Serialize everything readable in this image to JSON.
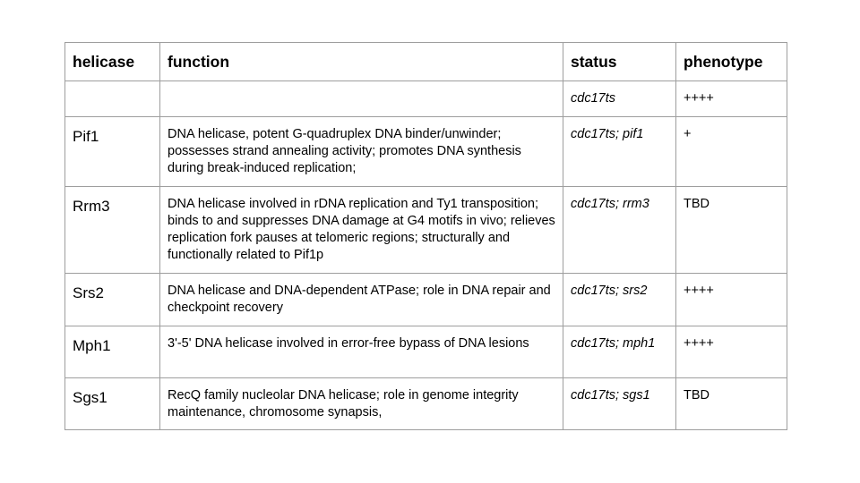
{
  "table": {
    "headers": {
      "helicase": "helicase",
      "function": "function",
      "status": "status",
      "phenotype": "phenotype"
    },
    "control_row": {
      "helicase": "",
      "function": "",
      "status": "cdc17ts",
      "phenotype": "++++"
    },
    "rows": [
      {
        "helicase": "Pif1",
        "function": "DNA helicase, potent G-quadruplex DNA binder/unwinder; possesses strand annealing activity; promotes DNA synthesis during break-induced replication;",
        "status": "cdc17ts; pif1",
        "phenotype": "+"
      },
      {
        "helicase": "Rrm3",
        "function": "DNA helicase involved in rDNA replication and Ty1 transposition; binds to and suppresses DNA damage at G4 motifs in vivo; relieves replication fork pauses at telomeric regions; structurally and functionally related to Pif1p",
        "status": "cdc17ts; rrm3",
        "phenotype": "TBD"
      },
      {
        "helicase": "Srs2",
        "function": "DNA helicase and DNA-dependent ATPase; role in DNA repair and checkpoint recovery",
        "status": "cdc17ts; srs2",
        "phenotype": "++++"
      },
      {
        "helicase": "Mph1",
        "function": "3'-5' DNA helicase involved in error-free bypass of DNA lesions",
        "status": "cdc17ts; mph1",
        "phenotype": "++++"
      },
      {
        "helicase": "Sgs1",
        "function": "RecQ family nucleolar DNA helicase; role in genome integrity maintenance, chromosome synapsis,",
        "status": "cdc17ts; sgs1",
        "phenotype": "TBD"
      }
    ]
  }
}
